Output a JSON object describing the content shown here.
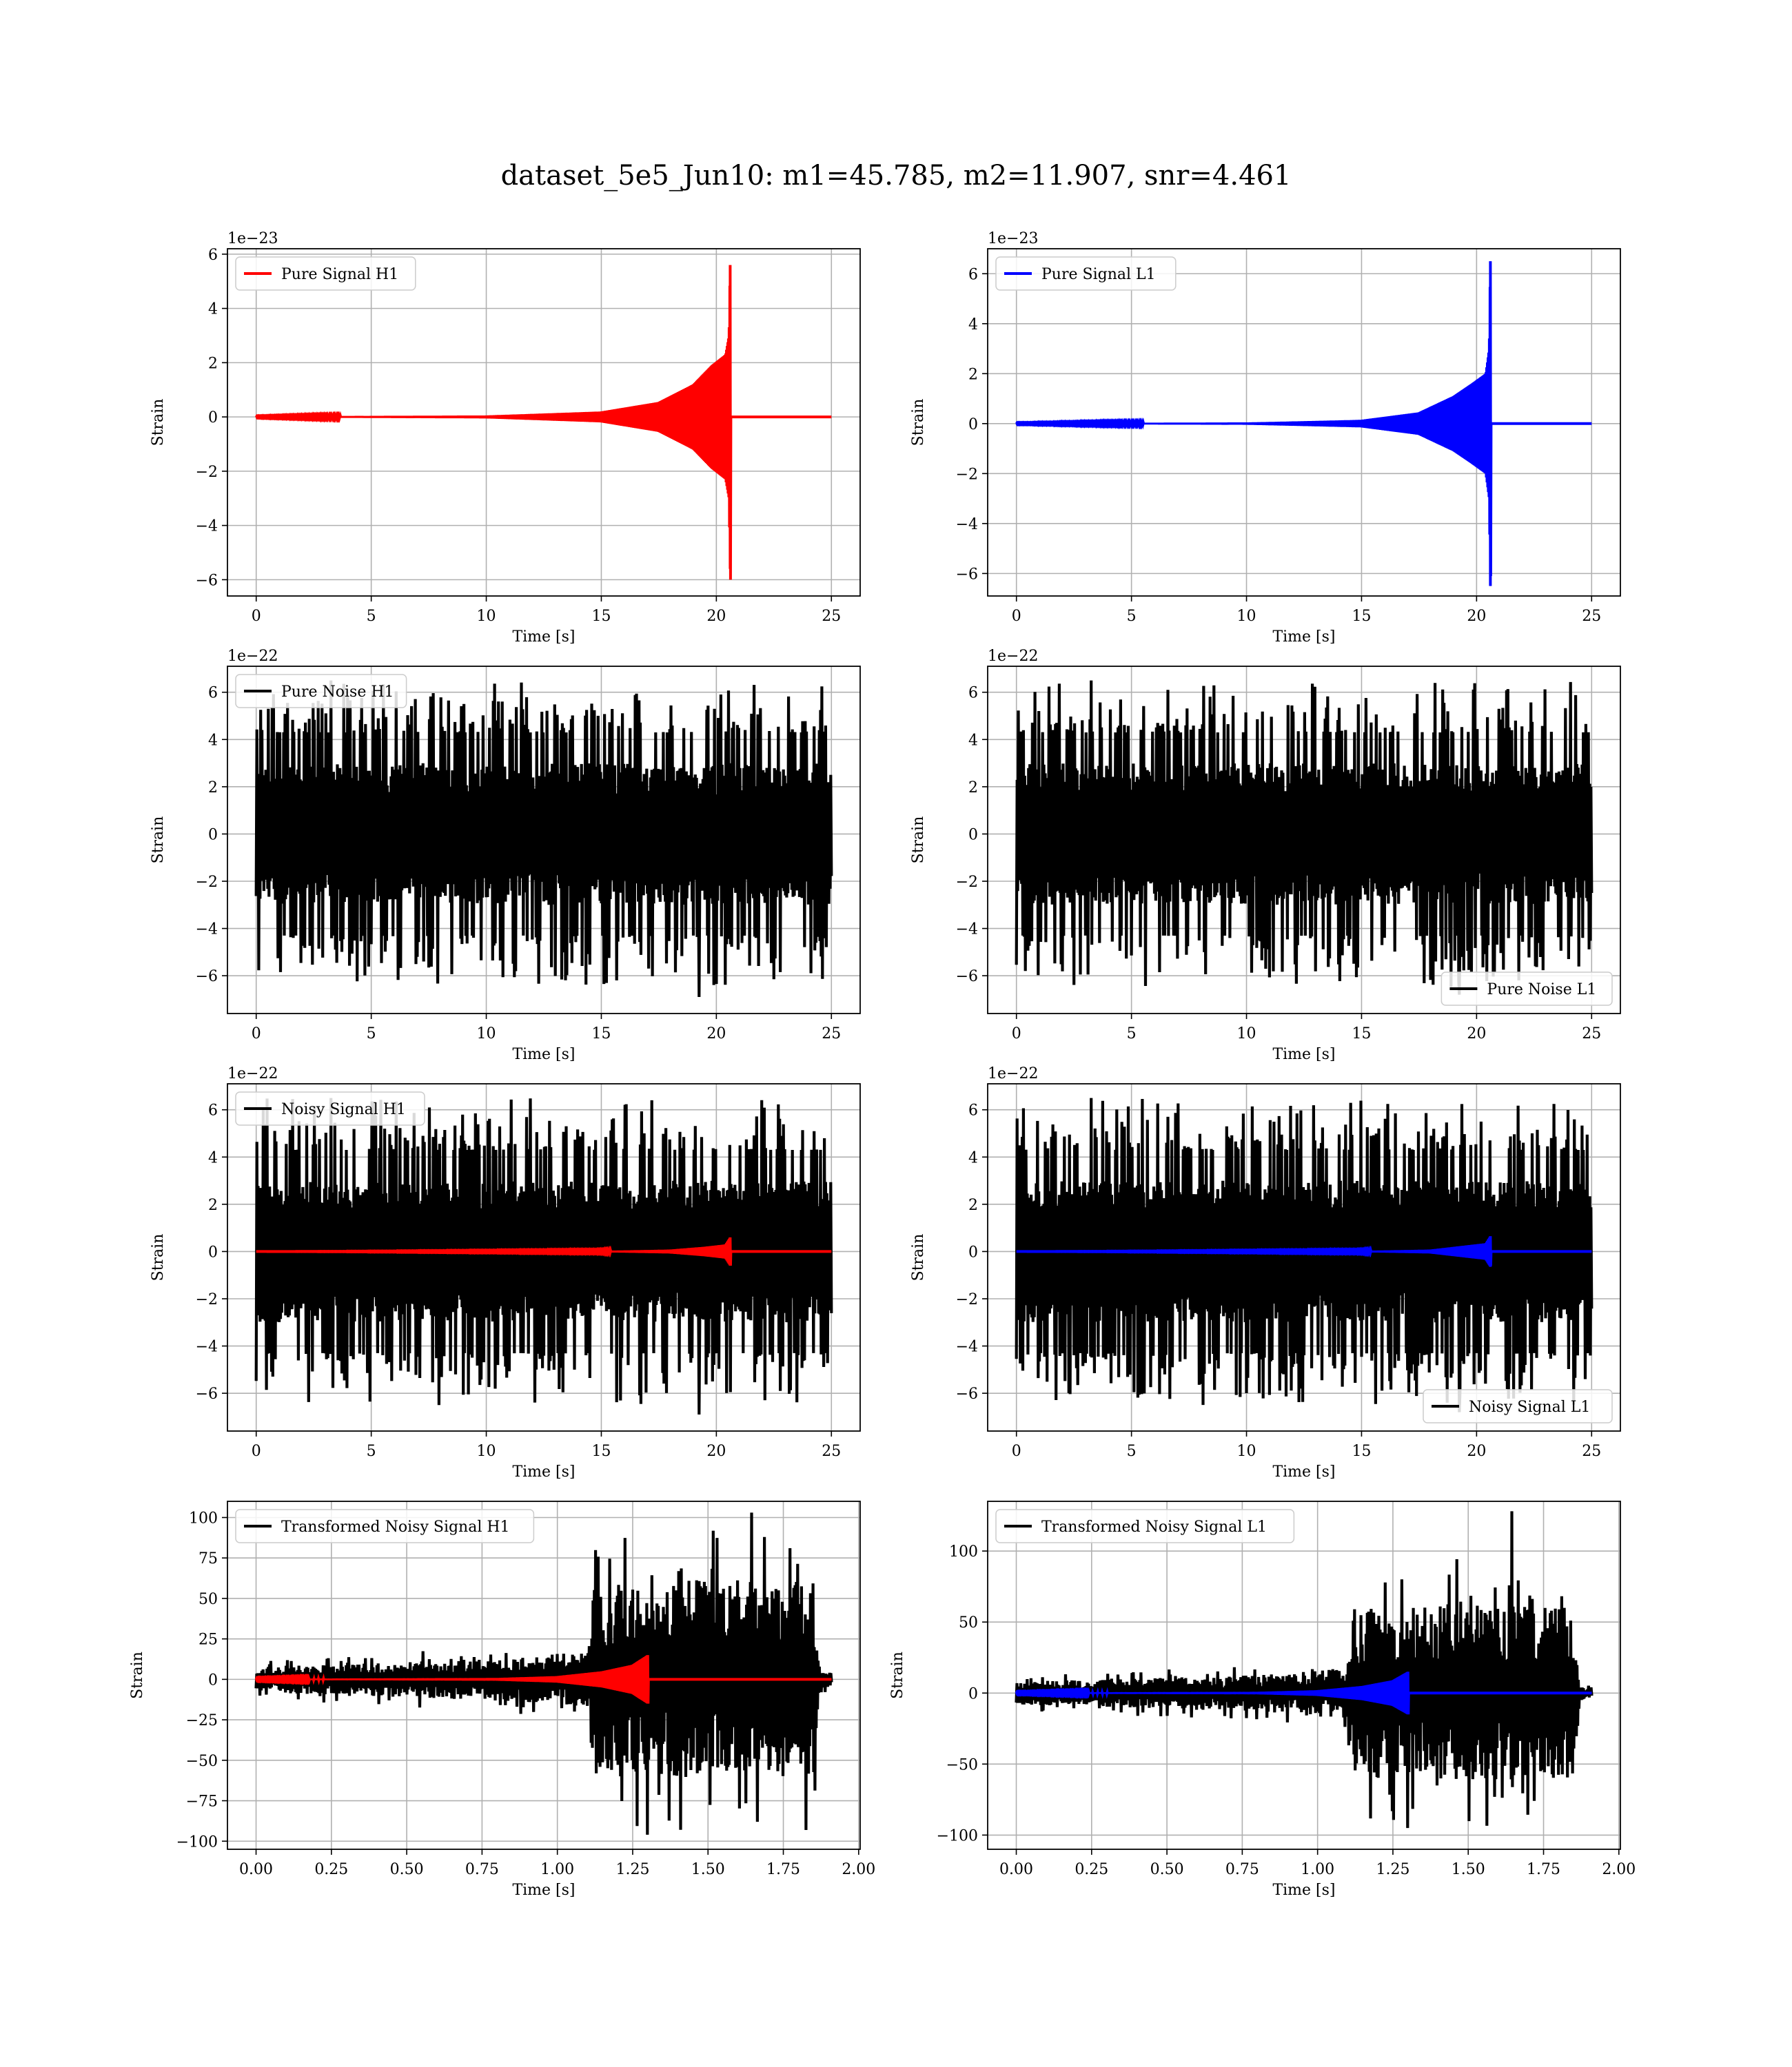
{
  "figure": {
    "title": "dataset_5e5_Jun10: m1=45.785, m2=11.907, snr=4.461"
  },
  "chart_data": [
    {
      "type": "line",
      "xlabel": "Time [s]",
      "ylabel": "Strain",
      "offset_text": "1e−23",
      "xlim": [
        -1.25,
        26.25
      ],
      "ylim": [
        -6.6,
        6.2
      ],
      "xticks": [
        0,
        5,
        10,
        15,
        20,
        25
      ],
      "xtick_labels": [
        "0",
        "5",
        "10",
        "15",
        "20",
        "25"
      ],
      "yticks": [
        -6,
        -4,
        -2,
        0,
        2,
        4,
        6
      ],
      "ytick_labels": [
        "−6",
        "−4",
        "−2",
        "0",
        "2",
        "4",
        "6"
      ],
      "grid": true,
      "legend_position": "upper-left",
      "series": [
        {
          "name": "Pure Signal H1",
          "color": "#ff0000",
          "kind": "chirp",
          "x_range": [
            0,
            25
          ],
          "merger_time": 20.6,
          "envelope": [
            [
              0,
              0.01
            ],
            [
              10,
              0.05
            ],
            [
              15,
              0.2
            ],
            [
              17.5,
              0.55
            ],
            [
              19,
              1.2
            ],
            [
              19.8,
              1.9
            ],
            [
              20.4,
              2.3
            ],
            [
              20.55,
              3.0
            ],
            [
              20.6,
              5.6
            ]
          ],
          "min_value": -6.0,
          "max_value": 5.6
        }
      ]
    },
    {
      "type": "line",
      "xlabel": "Time [s]",
      "ylabel": "Strain",
      "offset_text": "1e−23",
      "xlim": [
        -1.25,
        26.25
      ],
      "ylim": [
        -6.9,
        7.0
      ],
      "xticks": [
        0,
        5,
        10,
        15,
        20,
        25
      ],
      "xtick_labels": [
        "0",
        "5",
        "10",
        "15",
        "20",
        "25"
      ],
      "yticks": [
        -6,
        -4,
        -2,
        0,
        2,
        4,
        6
      ],
      "ytick_labels": [
        "−6",
        "−4",
        "−2",
        "0",
        "2",
        "4",
        "6"
      ],
      "grid": true,
      "legend_position": "upper-left",
      "series": [
        {
          "name": "Pure Signal L1",
          "color": "#0000ff",
          "kind": "chirp",
          "x_range": [
            0,
            25
          ],
          "merger_time": 20.6,
          "envelope": [
            [
              0,
              0.01
            ],
            [
              10,
              0.04
            ],
            [
              15,
              0.15
            ],
            [
              17.5,
              0.45
            ],
            [
              19,
              1.1
            ],
            [
              19.8,
              1.6
            ],
            [
              20.4,
              2.0
            ],
            [
              20.55,
              3.0
            ],
            [
              20.6,
              6.5
            ]
          ],
          "min_value": -6.1,
          "max_value": 6.5
        }
      ]
    },
    {
      "type": "line",
      "xlabel": "Time [s]",
      "ylabel": "Strain",
      "offset_text": "1e−22",
      "xlim": [
        -1.25,
        26.25
      ],
      "ylim": [
        -7.6,
        7.1
      ],
      "xticks": [
        0,
        5,
        10,
        15,
        20,
        25
      ],
      "xtick_labels": [
        "0",
        "5",
        "10",
        "15",
        "20",
        "25"
      ],
      "yticks": [
        -6,
        -4,
        -2,
        0,
        2,
        4,
        6
      ],
      "ytick_labels": [
        "−6",
        "−4",
        "−2",
        "0",
        "2",
        "4",
        "6"
      ],
      "grid": true,
      "legend_position": "upper-left",
      "series": [
        {
          "name": "Pure Noise H1",
          "color": "#000000",
          "kind": "noise",
          "x_range": [
            0,
            25
          ],
          "core_amplitude": 3.0,
          "spike_low": 4.3,
          "spike_high": 6.5,
          "min_value": -6.9,
          "max_value": 6.5
        }
      ]
    },
    {
      "type": "line",
      "xlabel": "Time [s]",
      "ylabel": "Strain",
      "offset_text": "1e−22",
      "xlim": [
        -1.25,
        26.25
      ],
      "ylim": [
        -7.6,
        7.1
      ],
      "xticks": [
        0,
        5,
        10,
        15,
        20,
        25
      ],
      "xtick_labels": [
        "0",
        "5",
        "10",
        "15",
        "20",
        "25"
      ],
      "yticks": [
        -6,
        -4,
        -2,
        0,
        2,
        4,
        6
      ],
      "ytick_labels": [
        "−6",
        "−4",
        "−2",
        "0",
        "2",
        "4",
        "6"
      ],
      "grid": true,
      "legend_position": "lower-right",
      "series": [
        {
          "name": "Pure Noise L1",
          "color": "#000000",
          "kind": "noise",
          "x_range": [
            0,
            25
          ],
          "core_amplitude": 3.0,
          "spike_low": 4.3,
          "spike_high": 6.5,
          "min_value": -6.8,
          "max_value": 6.5
        }
      ]
    },
    {
      "type": "line",
      "xlabel": "Time [s]",
      "ylabel": "Strain",
      "offset_text": "1e−22",
      "xlim": [
        -1.25,
        26.25
      ],
      "ylim": [
        -7.6,
        7.1
      ],
      "xticks": [
        0,
        5,
        10,
        15,
        20,
        25
      ],
      "xtick_labels": [
        "0",
        "5",
        "10",
        "15",
        "20",
        "25"
      ],
      "yticks": [
        -6,
        -4,
        -2,
        0,
        2,
        4,
        6
      ],
      "ytick_labels": [
        "−6",
        "−4",
        "−2",
        "0",
        "2",
        "4",
        "6"
      ],
      "grid": true,
      "legend_position": "upper-left",
      "series": [
        {
          "name": "Noisy Signal H1",
          "color": "#000000",
          "kind": "noise",
          "x_range": [
            0,
            25
          ],
          "core_amplitude": 3.0,
          "spike_low": 4.3,
          "spike_high": 6.5,
          "min_value": -6.9,
          "max_value": 6.5
        },
        {
          "color": "#ff0000",
          "kind": "chirp",
          "x_range": [
            0,
            25
          ],
          "merger_time": 20.6,
          "envelope": [
            [
              0,
              0.0
            ],
            [
              15,
              0.02
            ],
            [
              18,
              0.08
            ],
            [
              19.5,
              0.2
            ],
            [
              20.4,
              0.3
            ],
            [
              20.6,
              0.6
            ]
          ],
          "min_value": -0.6,
          "max_value": 0.6
        }
      ]
    },
    {
      "type": "line",
      "xlabel": "Time [s]",
      "ylabel": "Strain",
      "offset_text": "1e−22",
      "xlim": [
        -1.25,
        26.25
      ],
      "ylim": [
        -7.6,
        7.1
      ],
      "xticks": [
        0,
        5,
        10,
        15,
        20,
        25
      ],
      "xtick_labels": [
        "0",
        "5",
        "10",
        "15",
        "20",
        "25"
      ],
      "yticks": [
        -6,
        -4,
        -2,
        0,
        2,
        4,
        6
      ],
      "ytick_labels": [
        "−6",
        "−4",
        "−2",
        "0",
        "2",
        "4",
        "6"
      ],
      "grid": true,
      "legend_position": "lower-right",
      "series": [
        {
          "name": "Noisy Signal L1",
          "color": "#000000",
          "kind": "noise",
          "x_range": [
            0,
            25
          ],
          "core_amplitude": 3.0,
          "spike_low": 4.3,
          "spike_high": 6.5,
          "min_value": -6.8,
          "max_value": 6.5
        },
        {
          "color": "#0000ff",
          "kind": "chirp",
          "x_range": [
            0,
            25
          ],
          "merger_time": 20.6,
          "envelope": [
            [
              0,
              0.0
            ],
            [
              15,
              0.02
            ],
            [
              18,
              0.08
            ],
            [
              19.5,
              0.25
            ],
            [
              20.4,
              0.35
            ],
            [
              20.6,
              0.65
            ]
          ],
          "min_value": -0.6,
          "max_value": 0.65
        }
      ]
    },
    {
      "type": "line",
      "xlabel": "Time [s]",
      "ylabel": "Strain",
      "offset_text": "",
      "xlim": [
        -0.095,
        2.005
      ],
      "ylim": [
        -105,
        110
      ],
      "xticks": [
        0,
        0.25,
        0.5,
        0.75,
        1.0,
        1.25,
        1.5,
        1.75,
        2.0
      ],
      "xtick_labels": [
        "0.00",
        "0.25",
        "0.50",
        "0.75",
        "1.00",
        "1.25",
        "1.50",
        "1.75",
        "2.00"
      ],
      "yticks": [
        -100,
        -75,
        -50,
        -25,
        0,
        25,
        50,
        75,
        100
      ],
      "ytick_labels": [
        "−100",
        "−75",
        "−50",
        "−25",
        "0",
        "25",
        "50",
        "75",
        "100"
      ],
      "grid": true,
      "legend_position": "upper-left",
      "series": [
        {
          "name": "Transformed Noisy Signal H1",
          "color": "#000000",
          "kind": "transformed",
          "x_range": [
            0,
            1.91
          ],
          "envelope": [
            [
              0,
              8
            ],
            [
              0.5,
              11
            ],
            [
              0.9,
              14
            ],
            [
              1.1,
              18
            ],
            [
              1.12,
              60
            ],
            [
              1.5,
              62
            ],
            [
              1.85,
              60
            ],
            [
              1.87,
              6
            ],
            [
              1.91,
              4
            ]
          ],
          "min_value": -96,
          "max_value": 103
        },
        {
          "color": "#ff0000",
          "kind": "chirp",
          "x_range": [
            0,
            1.91
          ],
          "merger_time": 1.3,
          "envelope": [
            [
              0,
              0.2
            ],
            [
              0.8,
              0.8
            ],
            [
              1.0,
              2
            ],
            [
              1.15,
              5
            ],
            [
              1.25,
              9
            ],
            [
              1.3,
              15
            ]
          ],
          "min_value": -15,
          "max_value": 15
        }
      ]
    },
    {
      "type": "line",
      "xlabel": "Time [s]",
      "ylabel": "Strain",
      "offset_text": "",
      "xlim": [
        -0.095,
        2.005
      ],
      "ylim": [
        -110,
        135
      ],
      "xticks": [
        0,
        0.25,
        0.5,
        0.75,
        1.0,
        1.25,
        1.5,
        1.75,
        2.0
      ],
      "xtick_labels": [
        "0.00",
        "0.25",
        "0.50",
        "0.75",
        "1.00",
        "1.25",
        "1.50",
        "1.75",
        "2.00"
      ],
      "yticks": [
        -100,
        -50,
        0,
        50,
        100
      ],
      "ytick_labels": [
        "−100",
        "−50",
        "0",
        "50",
        "100"
      ],
      "grid": true,
      "legend_position": "upper-left",
      "series": [
        {
          "name": "Transformed Noisy Signal L1",
          "color": "#000000",
          "kind": "transformed",
          "x_range": [
            0,
            1.91
          ],
          "envelope": [
            [
              0,
              8
            ],
            [
              0.5,
              11
            ],
            [
              0.9,
              14
            ],
            [
              1.1,
              18
            ],
            [
              1.12,
              60
            ],
            [
              1.5,
              62
            ],
            [
              1.85,
              60
            ],
            [
              1.87,
              6
            ],
            [
              1.91,
              4
            ]
          ],
          "min_value": -95,
          "max_value": 128
        },
        {
          "color": "#0000ff",
          "kind": "chirp",
          "x_range": [
            0,
            1.91
          ],
          "merger_time": 1.3,
          "envelope": [
            [
              0,
              0.2
            ],
            [
              0.8,
              0.8
            ],
            [
              1.0,
              2
            ],
            [
              1.15,
              5
            ],
            [
              1.25,
              9
            ],
            [
              1.3,
              15
            ]
          ],
          "min_value": -15,
          "max_value": 15
        }
      ]
    }
  ]
}
